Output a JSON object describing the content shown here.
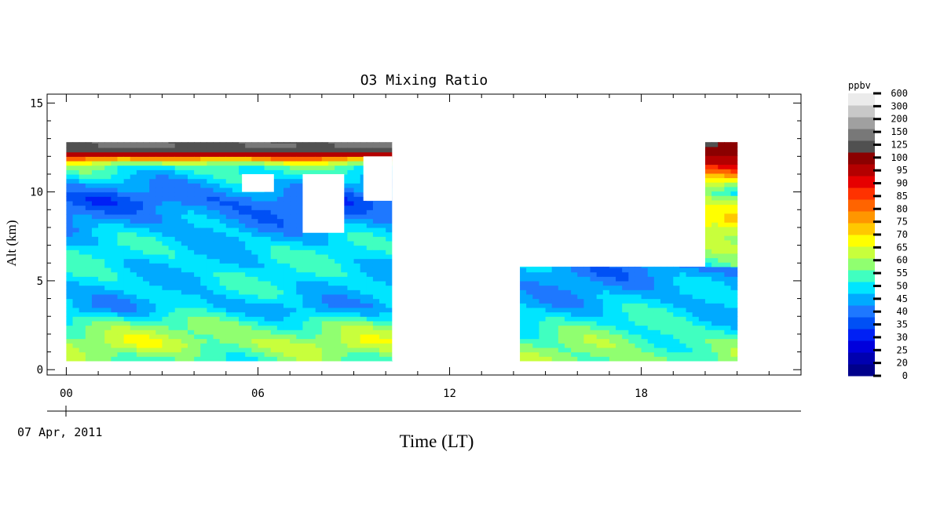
{
  "chart_data": {
    "type": "heatmap",
    "title": "O3 Mixing Ratio",
    "ylabel": "Alt (km)",
    "xlabel": "Time (LT)",
    "date_label": "07 Apr, 2011",
    "xlim": [
      -0.6,
      23.0
    ],
    "ylim": [
      -0.3,
      15.5
    ],
    "x_ticks": [
      0,
      6,
      12,
      18
    ],
    "x_tick_labels": [
      "00",
      "06",
      "12",
      "18"
    ],
    "y_ticks": [
      0,
      5,
      10,
      15
    ],
    "y_tick_labels": [
      "0",
      "5",
      "10",
      "15"
    ],
    "colorbar": {
      "unit": "ppbv",
      "levels": [
        "0",
        "20",
        "25",
        "30",
        "35",
        "40",
        "45",
        "50",
        "55",
        "60",
        "65",
        "70",
        "75",
        "80",
        "85",
        "90",
        "95",
        "100",
        "125",
        "150",
        "200",
        "300",
        "600"
      ],
      "colors": [
        "#00008b",
        "#0000b0",
        "#0000dc",
        "#0020f5",
        "#0050f5",
        "#1e78ff",
        "#00aaff",
        "#00e5ff",
        "#40ffc0",
        "#90ff70",
        "#c8ff3c",
        "#ffff00",
        "#ffc800",
        "#ff9600",
        "#ff6400",
        "#ff3200",
        "#e60000",
        "#b40000",
        "#8b0000",
        "#505050",
        "#787878",
        "#a0a0a0",
        "#c8c8c8",
        "#ebebeb"
      ]
    },
    "segments": [
      {
        "name": "",
        "time_range_hours": [
          0.0,
          10.2
        ],
        "altitude_range_km": [
          0.5,
          12.8
        ],
        "ozone_ppbv_profile": [
          {
            "alt_km": 0.5,
            "ppbv": 58
          },
          {
            "alt_km": 1.5,
            "ppbv": 66
          },
          {
            "alt_km": 2.5,
            "ppbv": 60
          },
          {
            "alt_km": 3.5,
            "ppbv": 48
          },
          {
            "alt_km": 4.5,
            "ppbv": 52
          },
          {
            "alt_km": 5.5,
            "ppbv": 52
          },
          {
            "alt_km": 6.5,
            "ppbv": 53
          },
          {
            "alt_km": 7.5,
            "ppbv": 50
          },
          {
            "alt_km": 8.5,
            "ppbv": 45
          },
          {
            "alt_km": 9.5,
            "ppbv": 40
          },
          {
            "alt_km": 10.5,
            "ppbv": 48
          },
          {
            "alt_km": 11.5,
            "ppbv": 58
          },
          {
            "alt_km": 12.0,
            "ppbv": 90
          },
          {
            "alt_km": 12.5,
            "ppbv": 200
          }
        ]
      },
      {
        "name": "",
        "time_range_hours": [
          14.2,
          21.0
        ],
        "altitude_range_km": [
          0.5,
          5.8
        ],
        "ozone_ppbv_profile": [
          {
            "alt_km": 0.5,
            "ppbv": 62
          },
          {
            "alt_km": 1.5,
            "ppbv": 60
          },
          {
            "alt_km": 2.5,
            "ppbv": 55
          },
          {
            "alt_km": 3.5,
            "ppbv": 50
          },
          {
            "alt_km": 4.5,
            "ppbv": 48
          },
          {
            "alt_km": 5.5,
            "ppbv": 45
          }
        ]
      },
      {
        "name": "",
        "time_range_hours": [
          20.0,
          21.0
        ],
        "altitude_range_km": [
          5.8,
          12.8
        ],
        "ozone_ppbv_profile": [
          {
            "alt_km": 6.0,
            "ppbv": 55
          },
          {
            "alt_km": 8.5,
            "ppbv": 80
          },
          {
            "alt_km": 10.0,
            "ppbv": 55
          },
          {
            "alt_km": 11.5,
            "ppbv": 95
          },
          {
            "alt_km": 12.5,
            "ppbv": 150
          }
        ]
      }
    ],
    "missing_data_regions": [
      {
        "time": [
          5.5,
          6.5
        ],
        "alt_km": [
          10.0,
          11.0
        ]
      },
      {
        "time": [
          7.4,
          8.7
        ],
        "alt_km": [
          7.7,
          11.0
        ]
      },
      {
        "time": [
          9.3,
          10.2
        ],
        "alt_km": [
          9.5,
          12.0
        ]
      },
      {
        "time": [
          10.2,
          14.2
        ],
        "alt_km": [
          0.5,
          12.8
        ]
      },
      {
        "time": [
          14.2,
          20.0
        ],
        "alt_km": [
          5.8,
          12.8
        ]
      }
    ],
    "grid": false,
    "legend": "colorbar-right"
  }
}
